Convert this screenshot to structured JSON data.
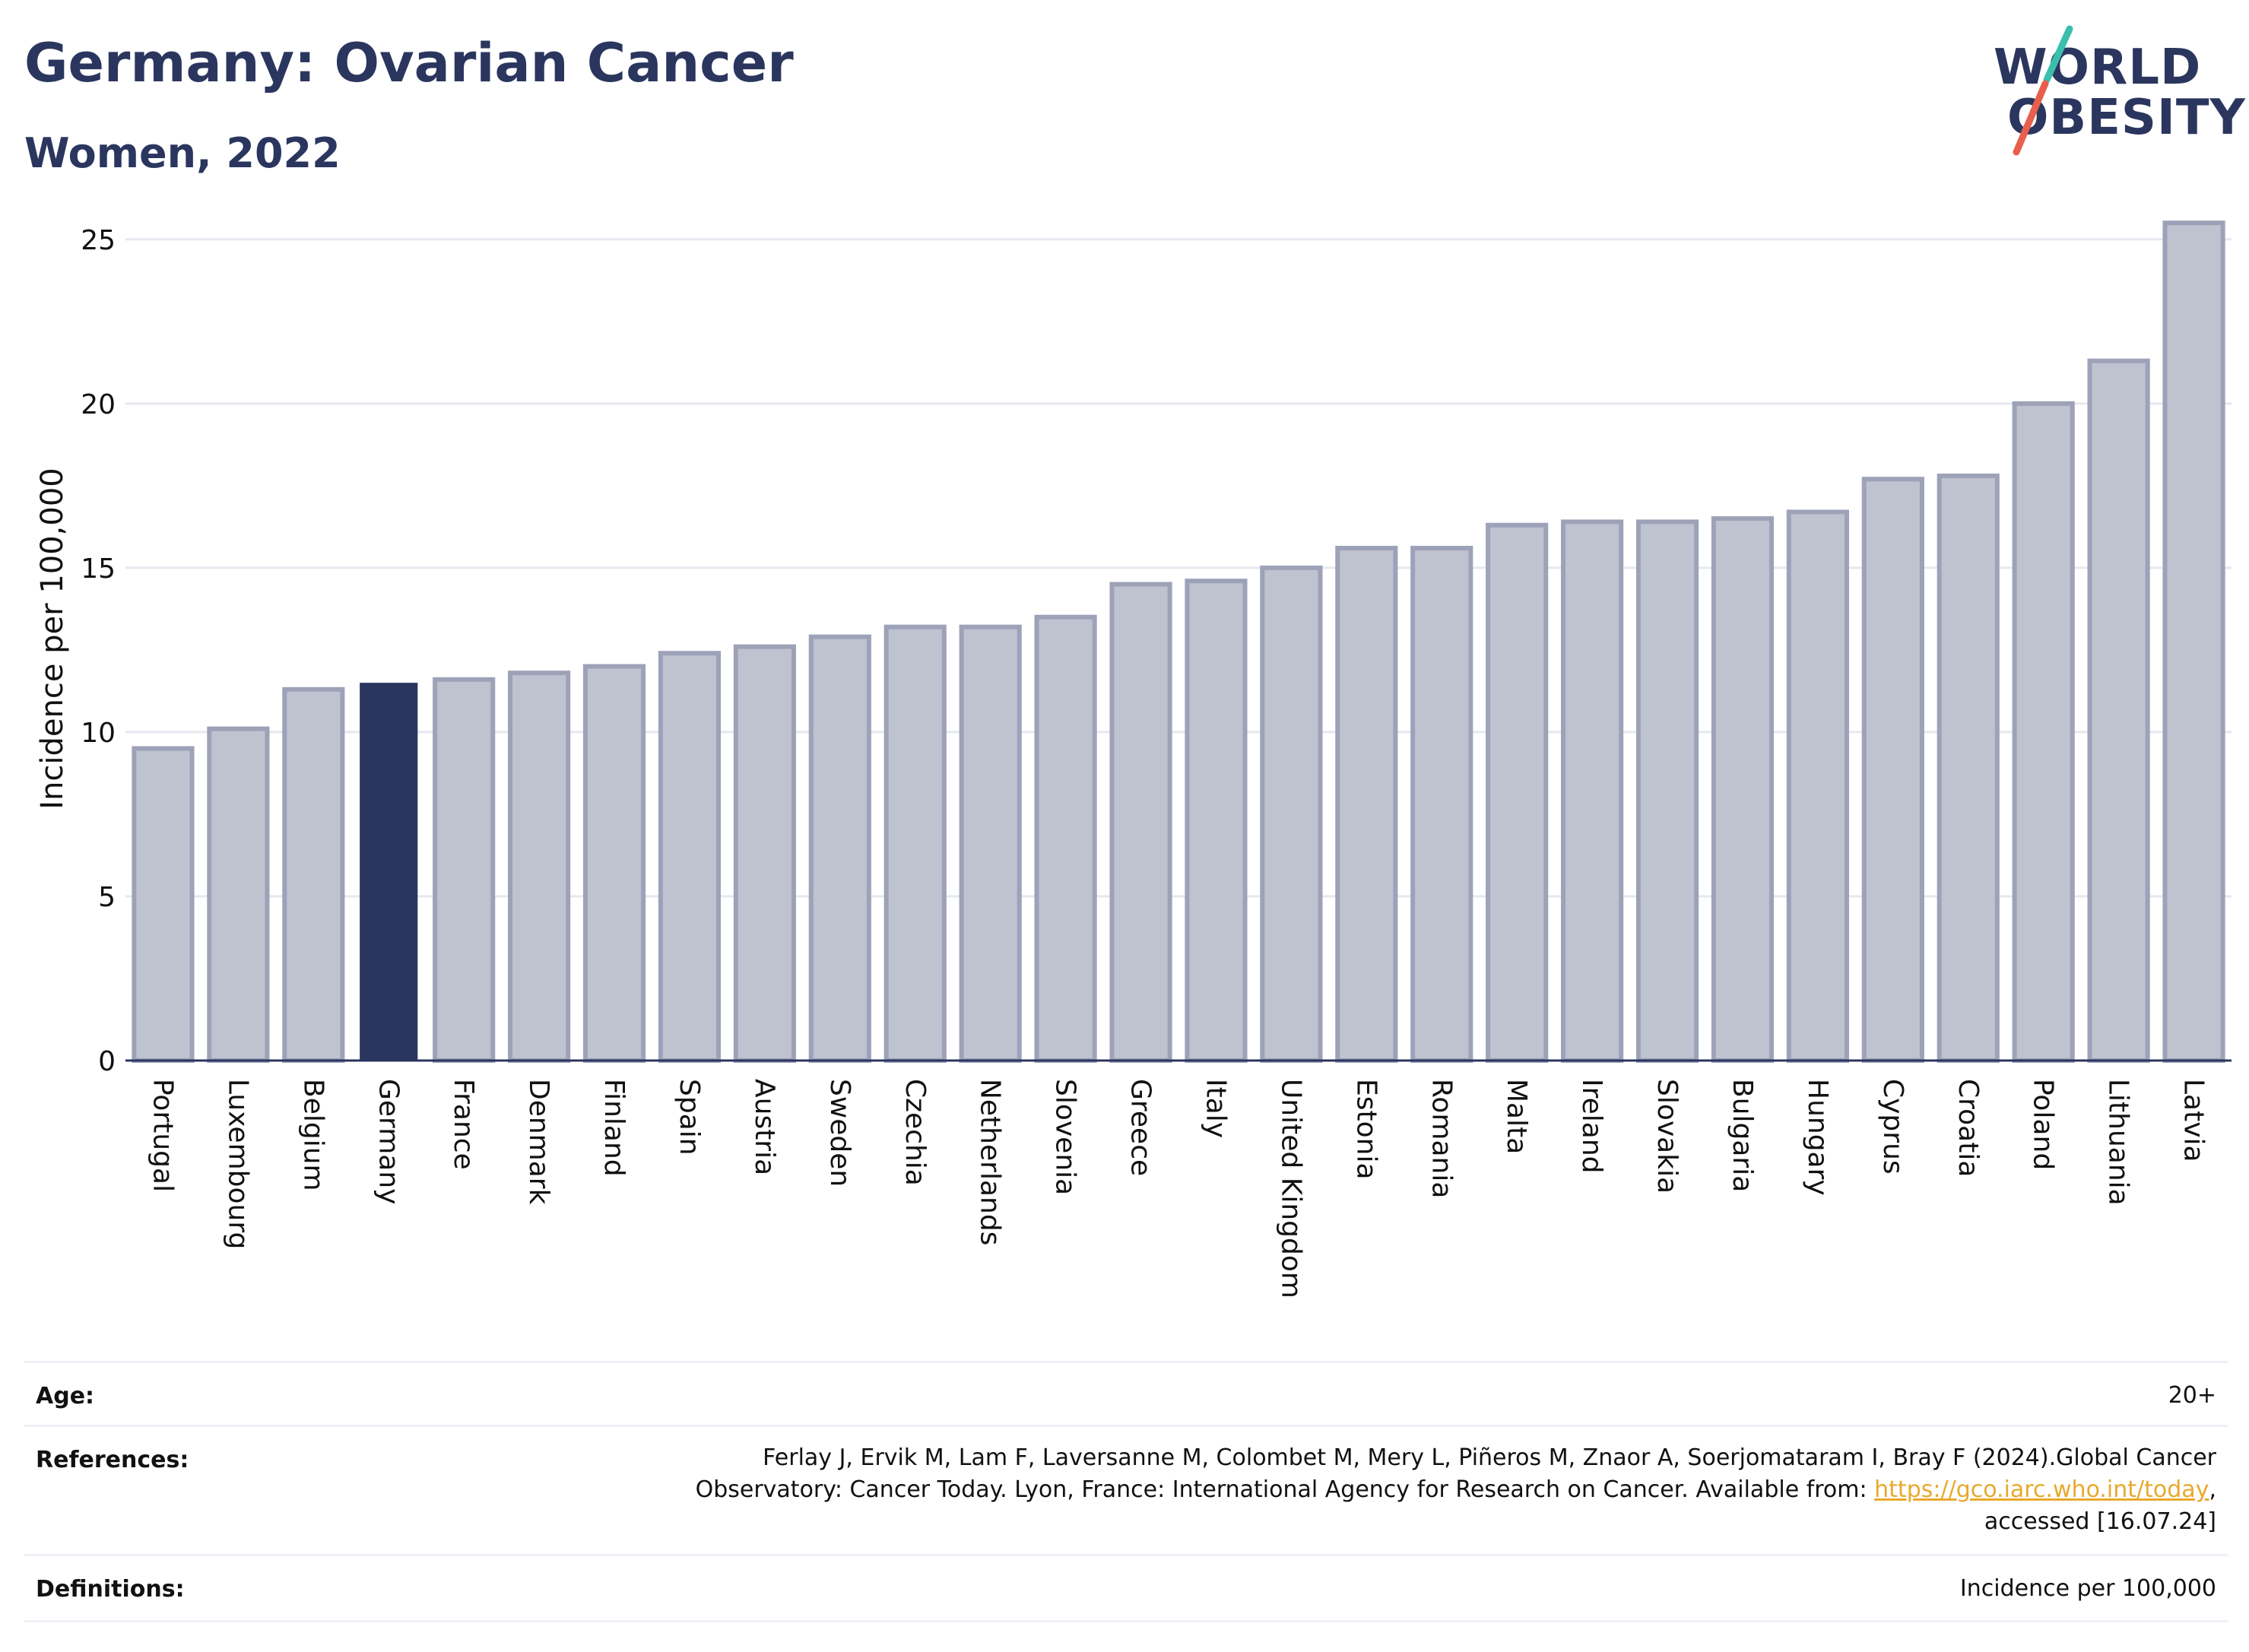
{
  "header": {
    "title": "Germany: Ovarian Cancer",
    "subtitle": "Women, 2022"
  },
  "logo": {
    "line1": "WORLD",
    "line2": "OBESITY",
    "colors": {
      "text": "#2b365f",
      "slash_top": "#3bbfad",
      "slash_bottom": "#e8604c"
    }
  },
  "chart_data": {
    "type": "bar",
    "categories": [
      "Portugal",
      "Luxembourg",
      "Belgium",
      "Germany",
      "France",
      "Denmark",
      "Finland",
      "Spain",
      "Austria",
      "Sweden",
      "Czechia",
      "Netherlands",
      "Slovenia",
      "Greece",
      "Italy",
      "United Kingdom",
      "Estonia",
      "Romania",
      "Malta",
      "Ireland",
      "Slovakia",
      "Bulgaria",
      "Hungary",
      "Cyprus",
      "Croatia",
      "Poland",
      "Lithuania",
      "Latvia"
    ],
    "values": [
      9.5,
      10.1,
      11.3,
      11.5,
      11.6,
      11.8,
      12.0,
      12.4,
      12.6,
      12.9,
      13.2,
      13.2,
      13.5,
      14.5,
      14.6,
      15.0,
      15.6,
      15.6,
      16.3,
      16.4,
      16.4,
      16.5,
      16.7,
      17.7,
      17.8,
      20.0,
      21.3,
      25.5
    ],
    "highlight": "Germany",
    "ylabel": "Incidence per 100,000",
    "xlabel": "",
    "ylim": [
      0,
      26.5
    ],
    "yticks": [
      0,
      5,
      10,
      15,
      20,
      25
    ],
    "grid": true,
    "colors": {
      "bar": "#bfc2cf",
      "bar_edge": "#9da2b8",
      "highlight": "#2b365f"
    }
  },
  "meta": {
    "age": {
      "label": "Age:",
      "value": "20+"
    },
    "references": {
      "label": "References:",
      "line1": "Ferlay J, Ervik M, Lam F, Laversanne M, Colombet M, Mery L, Piñeros M, Znaor A, Soerjomataram I, Bray F (2024).Global Cancer",
      "line2_prefix": "Observatory: Cancer Today. Lyon, France: International Agency for Research on Cancer. Available from: ",
      "link": "https://gco.iarc.who.int/today",
      "line2_suffix": ",",
      "line3": "accessed [16.07.24]"
    },
    "definitions": {
      "label": "Definitions:",
      "value": "Incidence per 100,000"
    }
  }
}
